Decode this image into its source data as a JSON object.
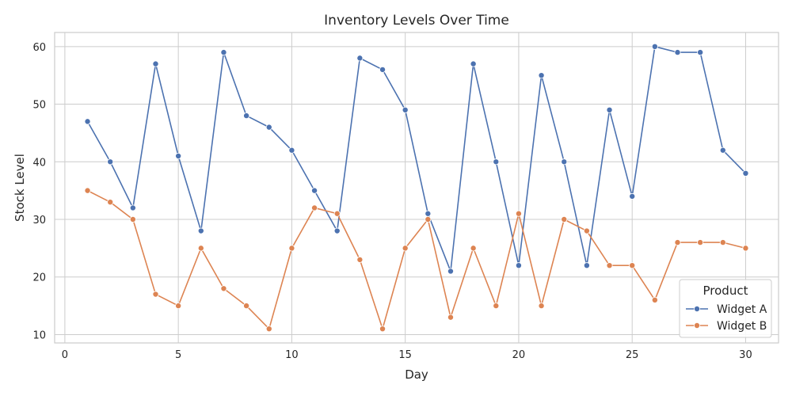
{
  "chart_data": {
    "type": "line",
    "title": "Inventory Levels Over Time",
    "xlabel": "Day",
    "ylabel": "Stock Level",
    "xlim": [
      -0.45,
      31.45
    ],
    "ylim": [
      8.55,
      62.45
    ],
    "xticks": [
      0,
      5,
      10,
      15,
      20,
      25,
      30
    ],
    "yticks": [
      10,
      20,
      30,
      40,
      50,
      60
    ],
    "grid": true,
    "legend": {
      "title": "Product",
      "placement": "bottom-right"
    },
    "x": [
      1,
      2,
      3,
      4,
      5,
      6,
      7,
      8,
      9,
      10,
      11,
      12,
      13,
      14,
      15,
      16,
      17,
      18,
      19,
      20,
      21,
      22,
      23,
      24,
      25,
      26,
      27,
      28,
      29,
      30
    ],
    "series": [
      {
        "name": "Widget A",
        "color": "#4c72b0",
        "values": [
          47,
          40,
          32,
          57,
          41,
          28,
          59,
          48,
          46,
          42,
          35,
          28,
          58,
          56,
          49,
          31,
          21,
          57,
          40,
          22,
          55,
          40,
          22,
          49,
          34,
          60,
          59,
          59,
          42,
          38
        ]
      },
      {
        "name": "Widget B",
        "color": "#dd8452",
        "values": [
          35,
          33,
          30,
          17,
          15,
          25,
          18,
          15,
          11,
          25,
          32,
          31,
          23,
          11,
          25,
          30,
          13,
          25,
          15,
          31,
          15,
          30,
          28,
          22,
          22,
          16,
          26,
          26,
          26,
          25
        ]
      }
    ]
  }
}
